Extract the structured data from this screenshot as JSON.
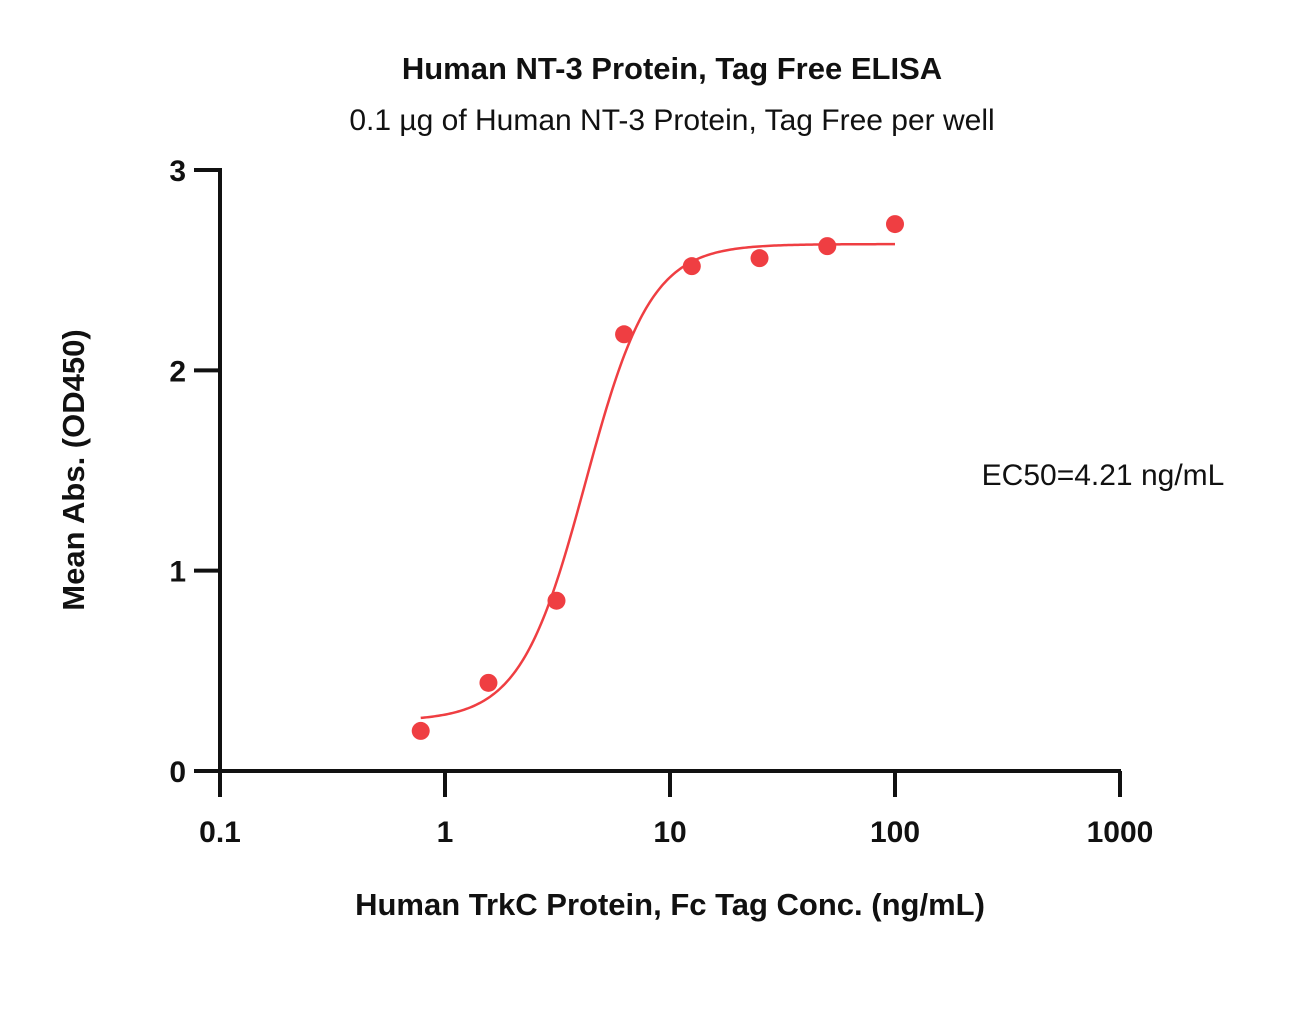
{
  "chart_data": {
    "type": "scatter",
    "title": "Human NT-3 Protein, Tag Free ELISA",
    "subtitle": "0.1 µg of Human NT-3 Protein, Tag Free per well",
    "xlabel": "Human TrkC Protein, Fc Tag Conc. (ng/mL)",
    "ylabel": "Mean Abs. (OD450)",
    "xscale": "log",
    "xlim": [
      0.1,
      1000
    ],
    "ylim": [
      0,
      3
    ],
    "xticks": [
      "0.1",
      "1",
      "10",
      "100",
      "1000"
    ],
    "yticks": [
      "0",
      "1",
      "2",
      "3"
    ],
    "grid": false,
    "color": "#EF3E42",
    "series": [
      {
        "x": [
          0.78,
          1.56,
          3.13,
          6.25,
          12.5,
          25,
          50,
          100
        ],
        "y": [
          0.2,
          0.44,
          0.85,
          2.18,
          2.52,
          2.56,
          2.62,
          2.73
        ]
      }
    ],
    "fit": {
      "model": "4PL",
      "bottom": 0.25,
      "top": 2.63,
      "ec50": 4.21,
      "hill": 3.0,
      "x_range": [
        0.78,
        100
      ]
    },
    "annotation": "EC50=4.21 ng/mL"
  }
}
